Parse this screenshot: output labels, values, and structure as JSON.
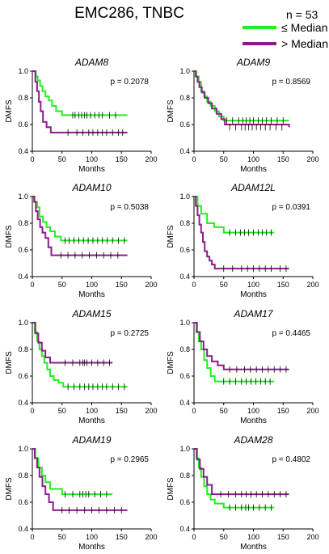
{
  "figure": {
    "title": "EMC286, TNBC",
    "n_label": "n = 53",
    "legend": [
      {
        "label": "≤ Median",
        "color": "#22ee22"
      },
      {
        "label": "> Median",
        "color": "#8b1d8b"
      }
    ]
  },
  "chart_data": [
    {
      "type": "line",
      "title": "ADAM8",
      "annotation": "p = 0.2078",
      "xlabel": "Months",
      "ylabel": "DMFS",
      "xlim": [
        0,
        200
      ],
      "ylim": [
        0.4,
        1.0
      ],
      "xticks": [
        "0",
        "50",
        "100",
        "150",
        "200"
      ],
      "yticks": [
        "0.4",
        "0.6",
        "0.8",
        "1.0"
      ],
      "series": [
        {
          "name": "≤ Median",
          "color": "#22ee22",
          "x": [
            0,
            6,
            9,
            13,
            17,
            22,
            28,
            33,
            40,
            50,
            160
          ],
          "y": [
            1.0,
            0.96,
            0.93,
            0.89,
            0.85,
            0.81,
            0.78,
            0.74,
            0.7,
            0.67,
            0.67
          ],
          "censored": [
            68,
            72,
            78,
            83,
            88,
            92,
            98,
            105,
            112,
            118,
            130,
            140
          ]
        },
        {
          "name": "> Median",
          "color": "#8b1d8b",
          "x": [
            0,
            5,
            8,
            11,
            14,
            18,
            24,
            31,
            160
          ],
          "y": [
            1.0,
            0.92,
            0.85,
            0.77,
            0.7,
            0.62,
            0.58,
            0.54,
            0.54
          ],
          "censored": [
            60,
            75,
            85,
            95,
            102,
            110,
            118,
            125,
            135,
            145,
            152
          ]
        }
      ]
    },
    {
      "type": "line",
      "title": "ADAM9",
      "annotation": "p = 0.8569",
      "xlabel": "Months",
      "ylabel": "DMFS",
      "xlim": [
        0,
        200
      ],
      "ylim": [
        0.4,
        1.0
      ],
      "xticks": [
        "0",
        "50",
        "100",
        "150",
        "200"
      ],
      "yticks": [
        "0.4",
        "0.6",
        "0.8",
        "1.0"
      ],
      "series": [
        {
          "name": "≤ Median",
          "color": "#22ee22",
          "x": [
            0,
            4,
            8,
            12,
            17,
            22,
            28,
            35,
            42,
            50,
            160
          ],
          "y": [
            1.0,
            0.96,
            0.92,
            0.85,
            0.81,
            0.77,
            0.74,
            0.7,
            0.66,
            0.63,
            0.63
          ],
          "censored": [
            55,
            65,
            75,
            82,
            88,
            94,
            100,
            108,
            115,
            122,
            130,
            140,
            150
          ]
        },
        {
          "name": "> Median",
          "color": "#8b1d8b",
          "x": [
            0,
            3,
            6,
            9,
            13,
            18,
            24,
            30,
            38,
            46,
            52,
            160
          ],
          "y": [
            1.0,
            0.96,
            0.92,
            0.88,
            0.84,
            0.8,
            0.76,
            0.72,
            0.68,
            0.64,
            0.6,
            0.58
          ],
          "censored": [
            60,
            70,
            80,
            86,
            92,
            98,
            105,
            112,
            120,
            128,
            138,
            148
          ]
        }
      ]
    },
    {
      "type": "line",
      "title": "ADAM10",
      "annotation": "p = 0.5038",
      "xlabel": "Months",
      "ylabel": "DMFS",
      "xlim": [
        0,
        200
      ],
      "ylim": [
        0.4,
        1.0
      ],
      "xticks": [
        "0",
        "50",
        "100",
        "150",
        "200"
      ],
      "yticks": [
        "0.4",
        "0.6",
        "0.8",
        "1.0"
      ],
      "series": [
        {
          "name": "≤ Median",
          "color": "#22ee22",
          "x": [
            0,
            4,
            8,
            12,
            18,
            24,
            30,
            38,
            48,
            160
          ],
          "y": [
            1.0,
            0.96,
            0.92,
            0.85,
            0.81,
            0.77,
            0.74,
            0.7,
            0.67,
            0.67
          ],
          "censored": [
            55,
            62,
            70,
            78,
            86,
            94,
            102,
            110,
            118,
            126,
            135,
            145,
            155
          ]
        },
        {
          "name": "> Median",
          "color": "#8b1d8b",
          "x": [
            0,
            3,
            6,
            9,
            13,
            17,
            22,
            27,
            32,
            160
          ],
          "y": [
            1.0,
            0.96,
            0.89,
            0.83,
            0.77,
            0.73,
            0.69,
            0.62,
            0.56,
            0.56
          ],
          "censored": [
            48,
            60,
            72,
            84,
            96,
            108,
            120,
            132,
            144
          ]
        }
      ]
    },
    {
      "type": "line",
      "title": "ADAM12L",
      "annotation": "p = 0.0391",
      "xlabel": "Months",
      "ylabel": "DMFS",
      "xlim": [
        0,
        200
      ],
      "ylim": [
        0.4,
        1.0
      ],
      "xticks": [
        "0",
        "50",
        "100",
        "150",
        "200"
      ],
      "yticks": [
        "0.4",
        "0.6",
        "0.8",
        "1.0"
      ],
      "series": [
        {
          "name": "≤ Median",
          "color": "#22ee22",
          "x": [
            0,
            6,
            12,
            22,
            34,
            50,
            135
          ],
          "y": [
            1.0,
            0.93,
            0.87,
            0.8,
            0.77,
            0.73,
            0.73
          ],
          "censored": [
            60,
            70,
            78,
            85,
            92,
            100,
            108,
            115,
            122,
            130
          ]
        },
        {
          "name": "> Median",
          "color": "#8b1d8b",
          "x": [
            0,
            3,
            6,
            9,
            12,
            15,
            18,
            22,
            26,
            30,
            35,
            160
          ],
          "y": [
            1.0,
            0.93,
            0.86,
            0.79,
            0.73,
            0.66,
            0.59,
            0.55,
            0.52,
            0.49,
            0.46,
            0.46
          ],
          "censored": [
            50,
            65,
            80,
            90,
            100,
            110,
            120,
            130,
            145,
            155
          ]
        }
      ]
    },
    {
      "type": "line",
      "title": "ADAM15",
      "annotation": "p = 0.2725",
      "xlabel": "Months",
      "ylabel": "DMFS",
      "xlim": [
        0,
        200
      ],
      "ylim": [
        0.4,
        1.0
      ],
      "xticks": [
        "0",
        "50",
        "100",
        "150",
        "200"
      ],
      "yticks": [
        "0.4",
        "0.6",
        "0.8",
        "1.0"
      ],
      "series": [
        {
          "name": "≤ Median",
          "color": "#22ee22",
          "x": [
            0,
            4,
            8,
            12,
            16,
            20,
            25,
            30,
            36,
            44,
            52,
            160
          ],
          "y": [
            1.0,
            0.93,
            0.86,
            0.8,
            0.75,
            0.7,
            0.65,
            0.6,
            0.57,
            0.55,
            0.52,
            0.52
          ],
          "censored": [
            60,
            70,
            80,
            88,
            95,
            102,
            110,
            118,
            125,
            135,
            145,
            155
          ]
        },
        {
          "name": "> Median",
          "color": "#8b1d8b",
          "x": [
            0,
            5,
            10,
            16,
            22,
            30,
            135
          ],
          "y": [
            1.0,
            0.92,
            0.85,
            0.79,
            0.74,
            0.7,
            0.7
          ],
          "censored": [
            55,
            68,
            80,
            85,
            88,
            92,
            100,
            110,
            120,
            130
          ]
        }
      ]
    },
    {
      "type": "line",
      "title": "ADAM17",
      "annotation": "p = 0.4465",
      "xlabel": "Months",
      "ylabel": "DMFS",
      "xlim": [
        0,
        200
      ],
      "ylim": [
        0.4,
        1.0
      ],
      "xticks": [
        "0",
        "50",
        "100",
        "150",
        "200"
      ],
      "yticks": [
        "0.4",
        "0.6",
        "0.8",
        "1.0"
      ],
      "series": [
        {
          "name": "≤ Median",
          "color": "#22ee22",
          "x": [
            0,
            4,
            8,
            12,
            17,
            22,
            28,
            35,
            135
          ],
          "y": [
            1.0,
            0.93,
            0.86,
            0.8,
            0.72,
            0.66,
            0.6,
            0.56,
            0.56
          ],
          "censored": [
            50,
            60,
            70,
            80,
            88,
            96,
            104,
            112,
            120,
            128
          ]
        },
        {
          "name": "> Median",
          "color": "#8b1d8b",
          "x": [
            0,
            5,
            10,
            16,
            22,
            30,
            40,
            50,
            160
          ],
          "y": [
            1.0,
            0.93,
            0.86,
            0.8,
            0.75,
            0.71,
            0.68,
            0.65,
            0.65
          ],
          "censored": [
            60,
            72,
            85,
            95,
            105,
            115,
            125,
            135,
            145,
            155
          ]
        }
      ]
    },
    {
      "type": "line",
      "title": "ADAM19",
      "annotation": "p = 0.2965",
      "xlabel": "Months",
      "ylabel": "DMFS",
      "xlim": [
        0,
        200
      ],
      "ylim": [
        0.4,
        1.0
      ],
      "xticks": [
        "0",
        "50",
        "100",
        "150",
        "200"
      ],
      "yticks": [
        "0.4",
        "0.6",
        "0.8",
        "1.0"
      ],
      "series": [
        {
          "name": "≤ Median",
          "color": "#22ee22",
          "x": [
            0,
            5,
            10,
            16,
            22,
            30,
            50,
            135
          ],
          "y": [
            1.0,
            0.93,
            0.86,
            0.8,
            0.75,
            0.7,
            0.66,
            0.66
          ],
          "censored": [
            55,
            68,
            80,
            85,
            90,
            95,
            105,
            115,
            125
          ]
        },
        {
          "name": "> Median",
          "color": "#8b1d8b",
          "x": [
            0,
            4,
            8,
            12,
            17,
            22,
            28,
            35,
            160
          ],
          "y": [
            1.0,
            0.93,
            0.86,
            0.79,
            0.72,
            0.66,
            0.6,
            0.54,
            0.54
          ],
          "censored": [
            50,
            62,
            75,
            88,
            100,
            112,
            125,
            138,
            150
          ]
        }
      ]
    },
    {
      "type": "line",
      "title": "ADAM28",
      "annotation": "p = 0.4802",
      "xlabel": "Months",
      "ylabel": "DMFS",
      "xlim": [
        0,
        200
      ],
      "ylim": [
        0.4,
        1.0
      ],
      "xticks": [
        "0",
        "50",
        "100",
        "150",
        "200"
      ],
      "yticks": [
        "0.4",
        "0.6",
        "0.8",
        "1.0"
      ],
      "series": [
        {
          "name": "≤ Median",
          "color": "#22ee22",
          "x": [
            0,
            4,
            8,
            12,
            17,
            22,
            28,
            35,
            50,
            135
          ],
          "y": [
            1.0,
            0.93,
            0.86,
            0.79,
            0.72,
            0.66,
            0.62,
            0.59,
            0.56,
            0.56
          ],
          "censored": [
            60,
            70,
            80,
            87,
            92,
            100,
            110,
            120,
            130
          ]
        },
        {
          "name": "> Median",
          "color": "#8b1d8b",
          "x": [
            0,
            5,
            10,
            16,
            22,
            30,
            160
          ],
          "y": [
            1.0,
            0.92,
            0.85,
            0.79,
            0.73,
            0.66,
            0.66
          ],
          "censored": [
            45,
            58,
            70,
            80,
            88,
            96,
            105,
            115,
            125,
            135,
            145,
            155
          ]
        }
      ]
    }
  ]
}
